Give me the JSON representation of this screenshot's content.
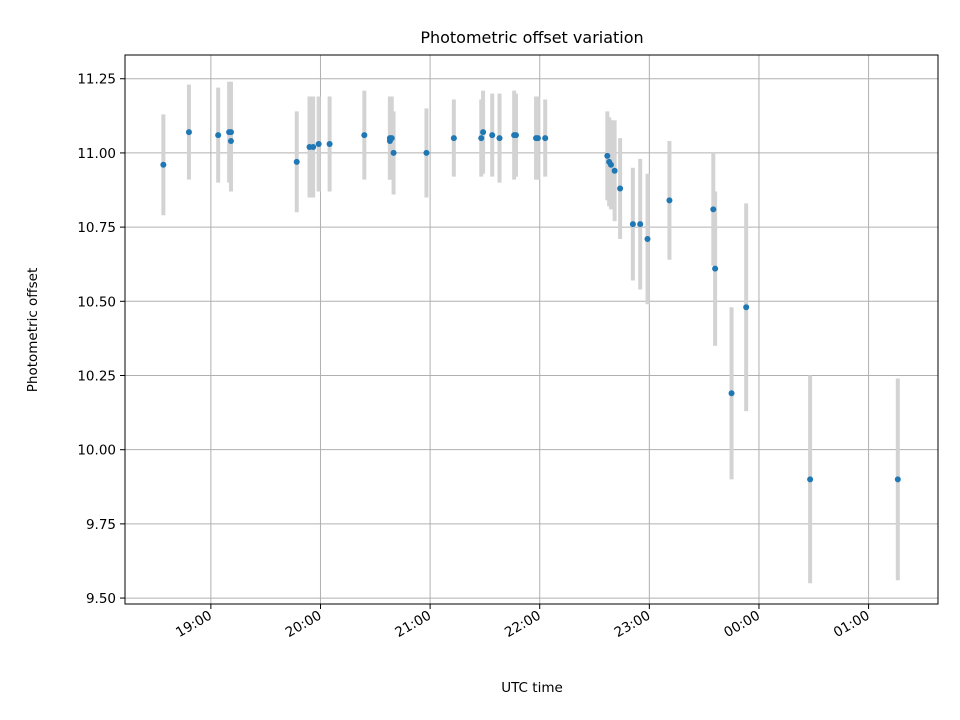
{
  "chart_data": {
    "type": "scatter",
    "title": "Photometric offset variation",
    "xlabel": "UTC time",
    "ylabel": "Photometric offset",
    "xlim": [
      "18:13",
      "01:38"
    ],
    "ylim": [
      9.48,
      11.33
    ],
    "grid": true,
    "legend": "none",
    "x_ticks": [
      "19:00",
      "20:00",
      "21:00",
      "22:00",
      "23:00",
      "00:00",
      "01:00"
    ],
    "y_ticks": [
      "9.50",
      "9.75",
      "10.00",
      "10.25",
      "10.50",
      "10.75",
      "11.00",
      "11.25"
    ],
    "colors": {
      "marker": "#1f77b4",
      "errorbar": "#d3d3d3",
      "grid": "#b0b0b0"
    },
    "series": [
      {
        "x": [
          "18:34",
          "18:48",
          "19:04",
          "19:10",
          "19:11",
          "19:11",
          "19:47",
          "19:54",
          "19:56",
          "19:59",
          "20:05",
          "20:24",
          "20:38",
          "20:38",
          "20:39",
          "20:40",
          "20:58",
          "21:13",
          "21:28",
          "21:29",
          "21:34",
          "21:38",
          "21:46",
          "21:47",
          "21:58",
          "21:59",
          "22:03",
          "22:37",
          "22:38",
          "22:39",
          "22:41",
          "22:44",
          "22:51",
          "22:55",
          "22:59",
          "23:11",
          "23:35",
          "23:36",
          "23:45",
          "23:53",
          "00:28",
          "01:16"
        ],
        "y": [
          10.96,
          11.07,
          11.06,
          11.07,
          11.04,
          11.07,
          10.97,
          11.02,
          11.02,
          11.03,
          11.03,
          11.06,
          11.04,
          11.05,
          11.05,
          11.0,
          11.0,
          11.05,
          11.05,
          11.07,
          11.06,
          11.05,
          11.06,
          11.06,
          11.05,
          11.05,
          11.05,
          10.99,
          10.97,
          10.96,
          10.94,
          10.88,
          10.76,
          10.76,
          10.71,
          10.84,
          10.81,
          10.61,
          10.19,
          10.48,
          9.9,
          9.9
        ],
        "yerr": [
          0.17,
          0.16,
          0.16,
          0.17,
          0.17,
          0.17,
          0.17,
          0.17,
          0.17,
          0.16,
          0.16,
          0.15,
          0.13,
          0.14,
          0.14,
          0.14,
          0.15,
          0.13,
          0.13,
          0.14,
          0.14,
          0.15,
          0.15,
          0.14,
          0.14,
          0.14,
          0.13,
          0.15,
          0.15,
          0.15,
          0.17,
          0.17,
          0.19,
          0.22,
          0.22,
          0.2,
          0.19,
          0.26,
          0.29,
          0.35,
          0.35,
          0.34
        ]
      }
    ]
  }
}
